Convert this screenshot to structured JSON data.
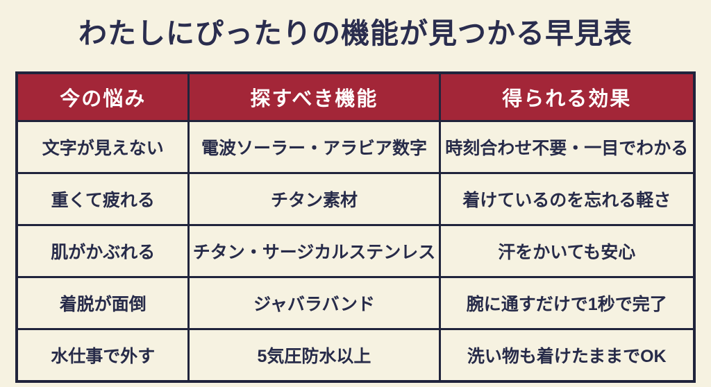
{
  "page": {
    "title": "わたしにぴったりの機能が見つかる早見表"
  },
  "colors": {
    "background": "#f6f2e1",
    "header_background": "#a32638",
    "header_text": "#ffffff",
    "border": "#20243c",
    "body_text": "#272b49",
    "title_text": "#2a2d4e"
  },
  "chart_data": {
    "type": "table",
    "title": "わたしにぴったりの機能が見つかる早見表",
    "columns": [
      "今の悩み",
      "探すべき機能",
      "得られる効果"
    ],
    "rows": [
      [
        "文字が見えない",
        "電波ソーラー・アラビア数字",
        "時刻合わせ不要・一目でわかる"
      ],
      [
        "重くて疲れる",
        "チタン素材",
        "着けているのを忘れる軽さ"
      ],
      [
        "肌がかぶれる",
        "チタン・サージカルステンレス",
        "汗をかいても安心"
      ],
      [
        "着脱が面倒",
        "ジャバラバンド",
        "腕に通すだけで1秒で完了"
      ],
      [
        "水仕事で外す",
        "5気圧防水以上",
        "洗い物も着けたままでOK"
      ]
    ],
    "layout": {
      "header_style": "dark-red background, white bold text",
      "grid": "dark navy borders on all cells",
      "column_width_ratio": [
        0.254,
        0.37,
        0.376
      ]
    }
  }
}
